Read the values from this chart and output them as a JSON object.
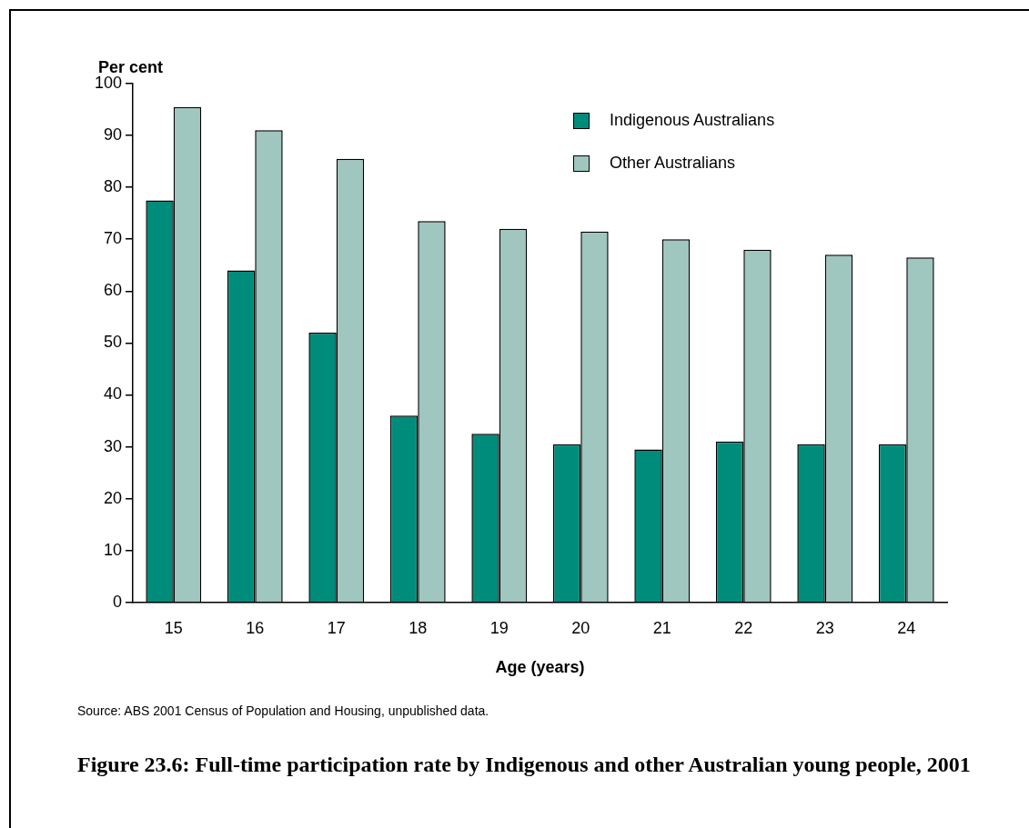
{
  "chart_data": {
    "type": "bar",
    "title": "Figure 23.6: Full-time participation rate by Indigenous and other Australian young people, 2001",
    "xlabel": "Age (years)",
    "ylabel": "Per cent",
    "categories": [
      "15",
      "16",
      "17",
      "18",
      "19",
      "20",
      "21",
      "22",
      "23",
      "24"
    ],
    "series": [
      {
        "name": "Indigenous Australians",
        "color": "#008c7a",
        "values": [
          77.5,
          64,
          52,
          36,
          32.5,
          30.5,
          29.5,
          31,
          30.5,
          30.5
        ]
      },
      {
        "name": "Other Australians",
        "color": "#9fc6bf",
        "values": [
          95.5,
          91,
          85.5,
          73.5,
          72,
          71.5,
          70,
          68,
          67,
          66.5
        ]
      }
    ],
    "ylim": [
      0,
      100
    ],
    "yticks": [
      0,
      10,
      20,
      30,
      40,
      50,
      60,
      70,
      80,
      90,
      100
    ],
    "grid": false,
    "legend": "top right",
    "annotations": [
      "Source: ABS 2001 Census of Population and Housing, unpublished data."
    ]
  }
}
